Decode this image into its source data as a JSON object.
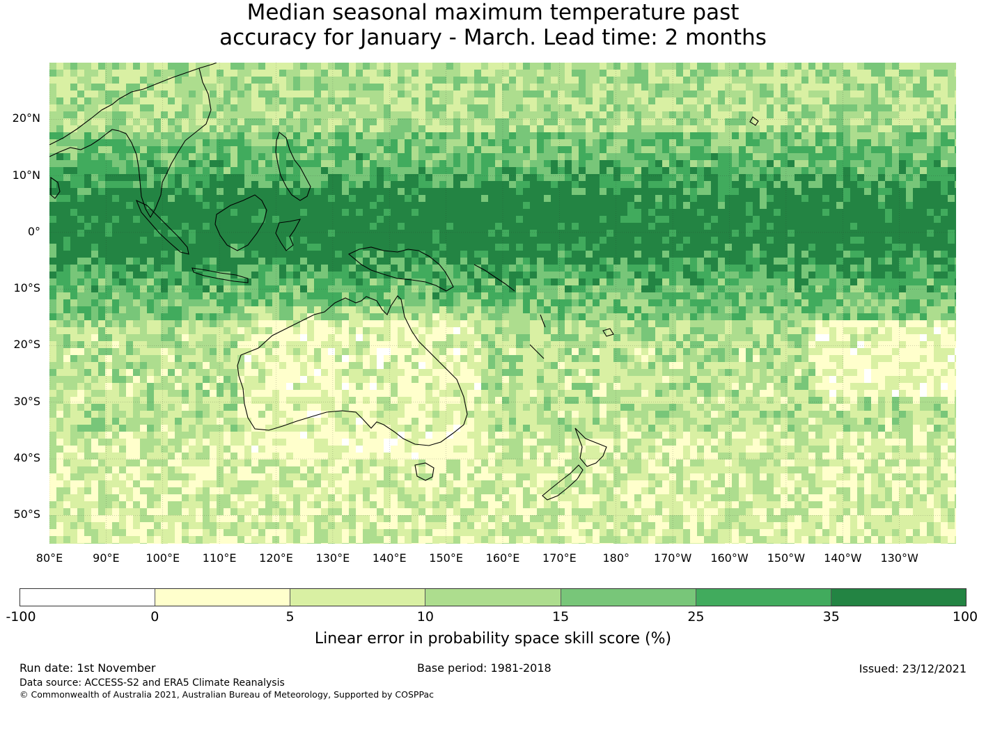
{
  "title": {
    "line1": "Median seasonal maximum temperature past",
    "line2": "accuracy for January - March. Lead time: 2 months"
  },
  "map": {
    "region": "Indo-Pacific / Australia",
    "lon_range": [
      80,
      240
    ],
    "lat_range": [
      -55,
      30
    ],
    "lat_ticks": [
      "20°N",
      "10°N",
      "0°",
      "10°S",
      "20°S",
      "30°S",
      "40°S",
      "50°S"
    ],
    "lon_ticks": [
      "80°E",
      "90°E",
      "100°E",
      "110°E",
      "120°E",
      "130°E",
      "140°E",
      "150°E",
      "160°E",
      "170°E",
      "180°",
      "170°W",
      "160°W",
      "150°W",
      "140°W",
      "130°W"
    ]
  },
  "colorbar": {
    "colors": [
      "#ffffff",
      "#ffffcc",
      "#d9f0a3",
      "#addd8e",
      "#78c679",
      "#41ab5d",
      "#238443"
    ],
    "ticks": [
      "-100",
      "0",
      "5",
      "10",
      "15",
      "25",
      "35",
      "100"
    ],
    "label": "Linear error in probability space skill score (%)"
  },
  "footer": {
    "run_date": "Run date: 1st November",
    "base_period": "Base period: 1981-2018",
    "issued": "Issued: 23/12/2021",
    "data_source": "Data source: ACCESS-S2 and ERA5 Climate Reanalysis",
    "copyright": "© Commonwealth of Australia 2021, Australian Bureau of Meteorology, Supported by COSPPac"
  }
}
